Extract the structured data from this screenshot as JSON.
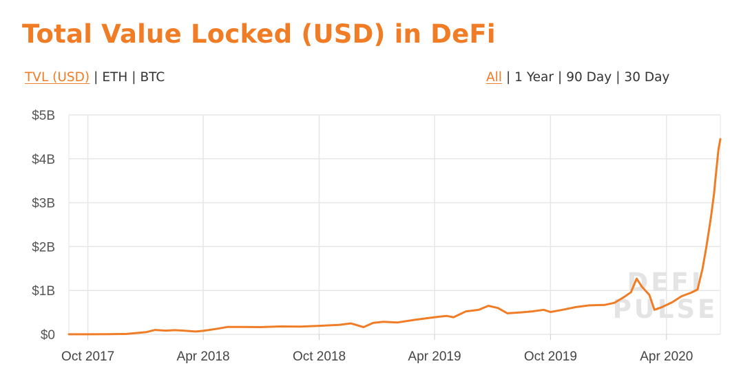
{
  "header": {
    "title": "Total Value Locked (USD) in DeFi"
  },
  "tabs": {
    "unit": [
      {
        "label": "TVL (USD)",
        "active": true
      },
      {
        "label": "ETH",
        "active": false
      },
      {
        "label": "BTC",
        "active": false
      }
    ],
    "range": [
      {
        "label": "All",
        "active": true
      },
      {
        "label": "1 Year",
        "active": false
      },
      {
        "label": "90 Day",
        "active": false
      },
      {
        "label": "30 Day",
        "active": false
      }
    ],
    "separator": "|"
  },
  "watermark": {
    "line1": "DEFI",
    "line2": "PULSE"
  },
  "colors": {
    "accent": "#f07c25",
    "grid": "#e6e6e6",
    "watermark": "#e4e4e4"
  },
  "chart_data": {
    "type": "line",
    "title": "Total Value Locked (USD) in DeFi",
    "xlabel": "",
    "ylabel": "",
    "ylim": [
      0,
      5000000000
    ],
    "xlim": [
      "2017-09-01",
      "2020-06-25"
    ],
    "grid": true,
    "y_ticks": [
      {
        "value": 0,
        "label": "$0"
      },
      {
        "value": 1000000000,
        "label": "$1B"
      },
      {
        "value": 2000000000,
        "label": "$2B"
      },
      {
        "value": 3000000000,
        "label": "$3B"
      },
      {
        "value": 4000000000,
        "label": "$4B"
      },
      {
        "value": 5000000000,
        "label": "$5B"
      }
    ],
    "x_ticks": [
      {
        "date": "2017-10-01",
        "label": "Oct 2017"
      },
      {
        "date": "2018-04-01",
        "label": "Apr 2018"
      },
      {
        "date": "2018-10-01",
        "label": "Oct 2018"
      },
      {
        "date": "2019-04-01",
        "label": "Apr 2019"
      },
      {
        "date": "2019-10-01",
        "label": "Oct 2019"
      },
      {
        "date": "2020-04-01",
        "label": "Apr 2020"
      }
    ],
    "series": [
      {
        "color": "#f07c25",
        "points": [
          [
            "2017-09-01",
            1000000
          ],
          [
            "2017-10-01",
            2000000
          ],
          [
            "2017-11-01",
            3000000
          ],
          [
            "2017-12-01",
            10000000
          ],
          [
            "2018-01-01",
            50000000
          ],
          [
            "2018-01-15",
            100000000
          ],
          [
            "2018-02-01",
            85000000
          ],
          [
            "2018-02-15",
            95000000
          ],
          [
            "2018-03-01",
            85000000
          ],
          [
            "2018-03-20",
            65000000
          ],
          [
            "2018-04-01",
            80000000
          ],
          [
            "2018-04-20",
            120000000
          ],
          [
            "2018-05-10",
            170000000
          ],
          [
            "2018-06-01",
            170000000
          ],
          [
            "2018-07-01",
            165000000
          ],
          [
            "2018-08-01",
            180000000
          ],
          [
            "2018-09-01",
            175000000
          ],
          [
            "2018-10-01",
            195000000
          ],
          [
            "2018-11-01",
            215000000
          ],
          [
            "2018-11-20",
            250000000
          ],
          [
            "2018-12-10",
            165000000
          ],
          [
            "2018-12-25",
            260000000
          ],
          [
            "2019-01-10",
            285000000
          ],
          [
            "2019-02-01",
            270000000
          ],
          [
            "2019-03-01",
            330000000
          ],
          [
            "2019-04-01",
            390000000
          ],
          [
            "2019-04-20",
            420000000
          ],
          [
            "2019-05-01",
            390000000
          ],
          [
            "2019-05-20",
            520000000
          ],
          [
            "2019-06-10",
            560000000
          ],
          [
            "2019-06-25",
            650000000
          ],
          [
            "2019-07-10",
            600000000
          ],
          [
            "2019-07-25",
            480000000
          ],
          [
            "2019-08-15",
            500000000
          ],
          [
            "2019-09-01",
            520000000
          ],
          [
            "2019-09-20",
            560000000
          ],
          [
            "2019-10-01",
            510000000
          ],
          [
            "2019-10-20",
            560000000
          ],
          [
            "2019-11-10",
            620000000
          ],
          [
            "2019-12-01",
            660000000
          ],
          [
            "2019-12-25",
            670000000
          ],
          [
            "2020-01-10",
            720000000
          ],
          [
            "2020-01-25",
            850000000
          ],
          [
            "2020-02-05",
            960000000
          ],
          [
            "2020-02-14",
            1270000000
          ],
          [
            "2020-02-22",
            1090000000
          ],
          [
            "2020-03-05",
            900000000
          ],
          [
            "2020-03-13",
            560000000
          ],
          [
            "2020-03-25",
            620000000
          ],
          [
            "2020-04-10",
            730000000
          ],
          [
            "2020-04-25",
            870000000
          ],
          [
            "2020-05-10",
            950000000
          ],
          [
            "2020-05-20",
            1020000000
          ],
          [
            "2020-05-28",
            1500000000
          ],
          [
            "2020-06-03",
            2000000000
          ],
          [
            "2020-06-10",
            2650000000
          ],
          [
            "2020-06-15",
            3200000000
          ],
          [
            "2020-06-18",
            3650000000
          ],
          [
            "2020-06-22",
            4200000000
          ],
          [
            "2020-06-25",
            4450000000
          ]
        ]
      }
    ]
  }
}
